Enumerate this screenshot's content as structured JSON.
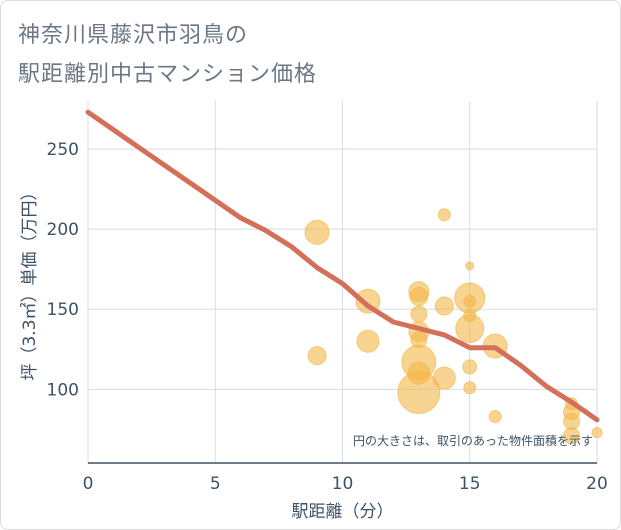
{
  "title_lines": [
    "神奈川県藤沢市羽鳥の",
    "駅距離別中古マンション価格"
  ],
  "colors": {
    "bubble": "#f4b84a",
    "trend": "#d4705a",
    "grid": "#d5dde5",
    "axis_text": "#3d5266",
    "note_text": "#3d5266"
  },
  "chart_data": {
    "type": "scatter",
    "xlabel": "駅距離（分）",
    "ylabel": "坪（3.3㎡）単価（万円）",
    "xlim": [
      0,
      20
    ],
    "ylim": [
      54,
      280
    ],
    "xticks": [
      0,
      5,
      10,
      15,
      20
    ],
    "yticks": [
      100,
      150,
      200,
      250
    ],
    "grid": true,
    "note": "円の大きさは、取引のあった物件面積を示す",
    "points": [
      {
        "x": 9,
        "y": 198,
        "r": 12
      },
      {
        "x": 9,
        "y": 121,
        "r": 9
      },
      {
        "x": 11,
        "y": 155,
        "r": 12
      },
      {
        "x": 11,
        "y": 130,
        "r": 11
      },
      {
        "x": 13,
        "y": 161,
        "r": 10
      },
      {
        "x": 13,
        "y": 158,
        "r": 9
      },
      {
        "x": 13,
        "y": 147,
        "r": 8
      },
      {
        "x": 13,
        "y": 136,
        "r": 10
      },
      {
        "x": 13,
        "y": 131,
        "r": 8
      },
      {
        "x": 13,
        "y": 117,
        "r": 17
      },
      {
        "x": 13,
        "y": 110,
        "r": 11
      },
      {
        "x": 13,
        "y": 98,
        "r": 21
      },
      {
        "x": 14,
        "y": 209,
        "r": 6
      },
      {
        "x": 14,
        "y": 152,
        "r": 9
      },
      {
        "x": 14,
        "y": 107,
        "r": 11
      },
      {
        "x": 15,
        "y": 177,
        "r": 4
      },
      {
        "x": 15,
        "y": 157,
        "r": 15
      },
      {
        "x": 15,
        "y": 155,
        "r": 6
      },
      {
        "x": 15,
        "y": 146,
        "r": 6
      },
      {
        "x": 15,
        "y": 138,
        "r": 14
      },
      {
        "x": 15,
        "y": 114,
        "r": 7
      },
      {
        "x": 15,
        "y": 101,
        "r": 6
      },
      {
        "x": 16,
        "y": 127,
        "r": 12
      },
      {
        "x": 16,
        "y": 83,
        "r": 6
      },
      {
        "x": 19,
        "y": 91,
        "r": 6
      },
      {
        "x": 19,
        "y": 86,
        "r": 8
      },
      {
        "x": 19,
        "y": 80,
        "r": 8
      },
      {
        "x": 19,
        "y": 71,
        "r": 8
      },
      {
        "x": 20,
        "y": 73,
        "r": 5
      }
    ],
    "trend": {
      "x": [
        0,
        1,
        2,
        3,
        4,
        5,
        6,
        7,
        8,
        9,
        10,
        11,
        12,
        13,
        14,
        15,
        16,
        17,
        18,
        19,
        20
      ],
      "y": [
        273,
        262,
        251,
        240,
        229,
        218,
        207,
        199,
        189,
        176,
        166,
        152,
        142,
        138,
        134,
        126,
        126,
        115,
        102,
        92,
        81
      ]
    }
  }
}
